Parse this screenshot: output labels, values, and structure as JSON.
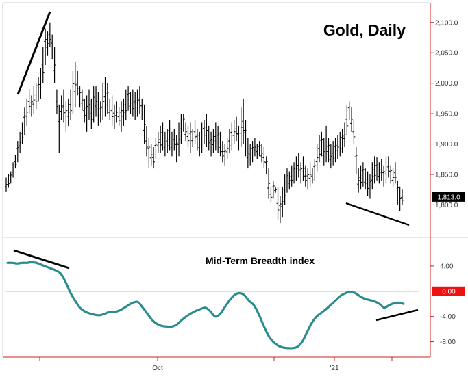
{
  "chart_data": [
    {
      "type": "ohlc",
      "title": "Gold, Daily",
      "ylim": [
        1760,
        2120
      ],
      "yticks": [
        "1,800.0",
        "1,850.0",
        "1,900.0",
        "1,950.0",
        "2,000.0",
        "2,050.0",
        "2,100.0"
      ],
      "ytick_values": [
        1800,
        1850,
        1900,
        1950,
        2000,
        2050,
        2100
      ],
      "last_value": 1813.0,
      "last_value_label": "1,813.0",
      "x_labels": [
        "Oct",
        "'21"
      ],
      "ranges": [
        [
          1822,
          1845
        ],
        [
          1828,
          1850
        ],
        [
          1835,
          1855
        ],
        [
          1845,
          1870
        ],
        [
          1860,
          1882
        ],
        [
          1870,
          1905
        ],
        [
          1885,
          1920
        ],
        [
          1900,
          1935
        ],
        [
          1915,
          1960
        ],
        [
          1930,
          1975
        ],
        [
          1950,
          1990
        ],
        [
          1945,
          1980
        ],
        [
          1950,
          1995
        ],
        [
          1958,
          2000
        ],
        [
          1970,
          2010
        ],
        [
          1975,
          2025
        ],
        [
          2000,
          2060
        ],
        [
          2030,
          2090
        ],
        [
          2045,
          2085
        ],
        [
          2060,
          2100
        ],
        [
          2040,
          2080
        ],
        [
          2000,
          2060
        ],
        [
          1950,
          1990
        ],
        [
          1885,
          1965
        ],
        [
          1940,
          1980
        ],
        [
          1935,
          1990
        ],
        [
          1920,
          1970
        ],
        [
          1930,
          1975
        ],
        [
          1940,
          1990
        ],
        [
          1950,
          2020
        ],
        [
          1960,
          2035
        ],
        [
          1980,
          2020
        ],
        [
          1960,
          1995
        ],
        [
          1955,
          1990
        ],
        [
          1935,
          1975
        ],
        [
          1920,
          1980
        ],
        [
          1940,
          1990
        ],
        [
          1925,
          1975
        ],
        [
          1935,
          1995
        ],
        [
          1945,
          1995
        ],
        [
          1930,
          1985
        ],
        [
          1935,
          1970
        ],
        [
          1940,
          2000
        ],
        [
          1945,
          2010
        ],
        [
          1950,
          2000
        ],
        [
          1940,
          1975
        ],
        [
          1930,
          1980
        ],
        [
          1925,
          1965
        ],
        [
          1935,
          1970
        ],
        [
          1930,
          1960
        ],
        [
          1920,
          1970
        ],
        [
          1930,
          1975
        ],
        [
          1940,
          1990
        ],
        [
          1955,
          1995
        ],
        [
          1950,
          1985
        ],
        [
          1945,
          1990
        ],
        [
          1940,
          1985
        ],
        [
          1945,
          1990
        ],
        [
          1950,
          1995
        ],
        [
          1940,
          1975
        ],
        [
          1900,
          1965
        ],
        [
          1880,
          1930
        ],
        [
          1860,
          1910
        ],
        [
          1865,
          1900
        ],
        [
          1860,
          1895
        ],
        [
          1875,
          1910
        ],
        [
          1885,
          1920
        ],
        [
          1885,
          1930
        ],
        [
          1890,
          1935
        ],
        [
          1880,
          1920
        ],
        [
          1885,
          1925
        ],
        [
          1890,
          1940
        ],
        [
          1880,
          1920
        ],
        [
          1890,
          1925
        ],
        [
          1870,
          1915
        ],
        [
          1880,
          1935
        ],
        [
          1900,
          1950
        ],
        [
          1920,
          1950
        ],
        [
          1905,
          1935
        ],
        [
          1895,
          1930
        ],
        [
          1885,
          1935
        ],
        [
          1895,
          1925
        ],
        [
          1900,
          1940
        ],
        [
          1890,
          1925
        ],
        [
          1880,
          1920
        ],
        [
          1885,
          1935
        ],
        [
          1900,
          1940
        ],
        [
          1895,
          1950
        ],
        [
          1890,
          1930
        ],
        [
          1880,
          1920
        ],
        [
          1885,
          1925
        ],
        [
          1890,
          1935
        ],
        [
          1885,
          1930
        ],
        [
          1880,
          1920
        ],
        [
          1870,
          1905
        ],
        [
          1865,
          1900
        ],
        [
          1875,
          1910
        ],
        [
          1885,
          1925
        ],
        [
          1890,
          1935
        ],
        [
          1900,
          1940
        ],
        [
          1905,
          1945
        ],
        [
          1890,
          1930
        ],
        [
          1895,
          1960
        ],
        [
          1900,
          1975
        ],
        [
          1880,
          1940
        ],
        [
          1860,
          1910
        ],
        [
          1865,
          1900
        ],
        [
          1870,
          1905
        ],
        [
          1880,
          1910
        ],
        [
          1875,
          1900
        ],
        [
          1880,
          1905
        ],
        [
          1870,
          1900
        ],
        [
          1860,
          1895
        ],
        [
          1850,
          1880
        ],
        [
          1810,
          1860
        ],
        [
          1805,
          1830
        ],
        [
          1810,
          1840
        ],
        [
          1820,
          1830
        ],
        [
          1775,
          1830
        ],
        [
          1770,
          1815
        ],
        [
          1780,
          1830
        ],
        [
          1800,
          1850
        ],
        [
          1820,
          1860
        ],
        [
          1825,
          1855
        ],
        [
          1830,
          1865
        ],
        [
          1835,
          1870
        ],
        [
          1840,
          1880
        ],
        [
          1845,
          1885
        ],
        [
          1835,
          1870
        ],
        [
          1840,
          1880
        ],
        [
          1830,
          1865
        ],
        [
          1825,
          1860
        ],
        [
          1830,
          1870
        ],
        [
          1835,
          1860
        ],
        [
          1840,
          1875
        ],
        [
          1855,
          1900
        ],
        [
          1870,
          1915
        ],
        [
          1880,
          1920
        ],
        [
          1865,
          1910
        ],
        [
          1870,
          1930
        ],
        [
          1870,
          1910
        ],
        [
          1860,
          1900
        ],
        [
          1865,
          1905
        ],
        [
          1870,
          1910
        ],
        [
          1875,
          1915
        ],
        [
          1880,
          1920
        ],
        [
          1885,
          1925
        ],
        [
          1895,
          1935
        ],
        [
          1915,
          1965
        ],
        [
          1940,
          1970
        ],
        [
          1920,
          1960
        ],
        [
          1900,
          1940
        ],
        [
          1850,
          1895
        ],
        [
          1820,
          1860
        ],
        [
          1825,
          1865
        ],
        [
          1830,
          1870
        ],
        [
          1825,
          1860
        ],
        [
          1815,
          1855
        ],
        [
          1810,
          1850
        ],
        [
          1825,
          1870
        ],
        [
          1835,
          1880
        ],
        [
          1840,
          1878
        ],
        [
          1835,
          1870
        ],
        [
          1840,
          1875
        ],
        [
          1830,
          1865
        ],
        [
          1835,
          1880
        ],
        [
          1845,
          1880
        ],
        [
          1835,
          1865
        ],
        [
          1830,
          1860
        ],
        [
          1835,
          1870
        ],
        [
          1800,
          1840
        ],
        [
          1790,
          1830
        ],
        [
          1800,
          1825
        ]
      ]
    },
    {
      "type": "line",
      "title": "Mid-Term Breadth index",
      "ylim": [
        -10,
        8
      ],
      "yticks": [
        "-8.00",
        "-4.00",
        "4.00"
      ],
      "ytick_values": [
        -8,
        -4,
        4
      ],
      "zero_label": "0.00",
      "values": [
        4.5,
        4.5,
        4.4,
        4.5,
        4.5,
        4.6,
        4.5,
        4.2,
        3.9,
        3.6,
        3.3,
        2.8,
        1.5,
        -0.2,
        -1.5,
        -2.6,
        -3.2,
        -3.5,
        -3.7,
        -3.8,
        -3.6,
        -3.3,
        -3.3,
        -3.1,
        -2.7,
        -2.2,
        -1.8,
        -1.7,
        -2.6,
        -3.6,
        -4.6,
        -5.2,
        -5.5,
        -5.6,
        -5.6,
        -5.3,
        -4.6,
        -4.0,
        -3.5,
        -3.1,
        -2.8,
        -2.6,
        -3.2,
        -4.0,
        -3.6,
        -2.5,
        -1.4,
        -0.6,
        -0.3,
        -0.6,
        -1.5,
        -2.2,
        -3.6,
        -5.4,
        -7.0,
        -8.0,
        -8.6,
        -8.9,
        -9.0,
        -9.0,
        -8.8,
        -8.0,
        -6.5,
        -5.0,
        -4.0,
        -3.4,
        -2.8,
        -2.1,
        -1.4,
        -0.7,
        -0.3,
        -0.1,
        -0.3,
        -0.8,
        -1.2,
        -1.4,
        -1.6,
        -2.0,
        -2.6,
        -2.2,
        -1.9,
        -1.8,
        -2.0
      ]
    }
  ],
  "colors": {
    "axis": "#cc2222",
    "bars": "#000000",
    "breadth_line": "#2a8c8c",
    "zero_line": "#7a8a2a",
    "trend_lines": "#000000",
    "last_value_bg": "#000000",
    "zero_badge_bg": "#ee1111"
  }
}
